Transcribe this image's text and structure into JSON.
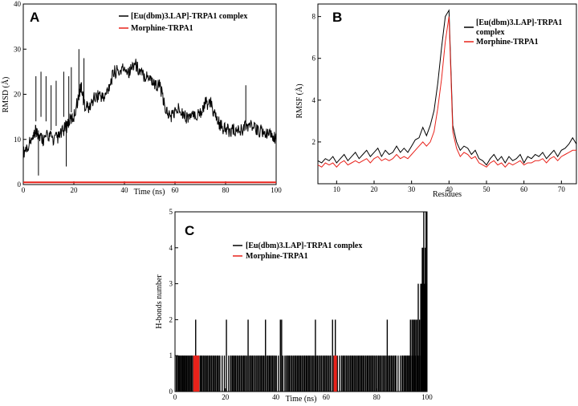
{
  "colors": {
    "complex": "#000000",
    "morphine": "#e8221b"
  },
  "chart_data": [
    {
      "panel": "A",
      "type": "line",
      "xlabel": "Time (ns)",
      "ylabel": "RMSD (Å)",
      "xlim": [
        0,
        100
      ],
      "ylim": [
        0,
        40
      ],
      "xticks": [
        "0",
        "20",
        "40",
        "60",
        "80",
        "100"
      ],
      "yticks": [
        "0",
        "10",
        "20",
        "30",
        "40"
      ],
      "legend": [
        "[Eu(dbm)3.LAP]-TRPA1 complex",
        "Morphine-TRPA1"
      ],
      "series": [
        {
          "name": "[Eu(dbm)3.LAP]-TRPA1 complex",
          "x": [
            0,
            2,
            4,
            5,
            6,
            8,
            10,
            12,
            14,
            16,
            18,
            20,
            22,
            23,
            24,
            26,
            28,
            30,
            32,
            34,
            36,
            38,
            40,
            42,
            44,
            46,
            48,
            50,
            52,
            54,
            56,
            58,
            60,
            62,
            64,
            66,
            68,
            70,
            72,
            74,
            76,
            78,
            80,
            82,
            84,
            86,
            88,
            90,
            92,
            94,
            96,
            98,
            100
          ],
          "y": [
            7,
            9,
            10,
            12,
            11,
            10,
            11,
            10,
            10.5,
            12,
            14,
            15,
            20,
            22,
            18,
            17,
            19,
            20,
            19,
            22,
            25,
            25,
            26,
            25,
            27,
            25,
            24,
            24,
            22,
            22,
            17,
            15,
            16,
            17,
            15,
            15,
            15,
            16,
            18,
            18,
            15,
            13,
            12,
            12,
            12,
            12,
            13,
            13,
            12,
            12,
            11,
            11,
            10
          ]
        },
        {
          "name": "Morphine-TRPA1",
          "x": [
            0,
            20,
            40,
            60,
            80,
            100
          ],
          "y": [
            0.5,
            0.5,
            0.5,
            0.5,
            0.5,
            0.5
          ]
        }
      ]
    },
    {
      "panel": "B",
      "type": "line",
      "xlabel": "Residues",
      "ylabel": "RMSF (Å)",
      "xlim": [
        5,
        74
      ],
      "ylim": [
        0,
        8.6
      ],
      "xticks": [
        "10",
        "20",
        "30",
        "40",
        "50",
        "60",
        "70"
      ],
      "yticks": [
        "2",
        "4",
        "6",
        "8"
      ],
      "legend": [
        "[Eu(dbm)3.LAP]-TRPA1 complex",
        "Morphine-TRPA1"
      ],
      "series": [
        {
          "name": "[Eu(dbm)3.LAP]-TRPA1 complex",
          "x": [
            5,
            6,
            7,
            8,
            9,
            10,
            11,
            12,
            13,
            14,
            15,
            16,
            17,
            18,
            19,
            20,
            21,
            22,
            23,
            24,
            25,
            26,
            27,
            28,
            29,
            30,
            31,
            32,
            33,
            34,
            35,
            36,
            37,
            38,
            39,
            40,
            41,
            42,
            43,
            44,
            45,
            46,
            47,
            48,
            49,
            50,
            51,
            52,
            53,
            54,
            55,
            56,
            57,
            58,
            59,
            60,
            61,
            62,
            63,
            64,
            65,
            66,
            67,
            68,
            69,
            70,
            71,
            72,
            73,
            74
          ],
          "y": [
            1.1,
            1.0,
            1.2,
            1.1,
            1.3,
            1.0,
            1.2,
            1.4,
            1.1,
            1.3,
            1.5,
            1.2,
            1.4,
            1.6,
            1.3,
            1.5,
            1.7,
            1.3,
            1.6,
            1.4,
            1.5,
            1.8,
            1.5,
            1.7,
            1.5,
            1.8,
            2.1,
            2.2,
            2.7,
            2.3,
            2.8,
            3.5,
            4.8,
            6.5,
            8.0,
            8.3,
            2.8,
            2.0,
            1.6,
            1.8,
            1.7,
            1.4,
            1.6,
            1.2,
            1.1,
            0.9,
            1.2,
            1.4,
            1.1,
            1.3,
            1.0,
            1.3,
            1.1,
            1.2,
            1.4,
            1.0,
            1.3,
            1.2,
            1.4,
            1.3,
            1.5,
            1.2,
            1.4,
            1.6,
            1.3,
            1.6,
            1.7,
            1.9,
            2.2,
            1.9
          ]
        },
        {
          "name": "Morphine-TRPA1",
          "x": [
            5,
            6,
            7,
            8,
            9,
            10,
            11,
            12,
            13,
            14,
            15,
            16,
            17,
            18,
            19,
            20,
            21,
            22,
            23,
            24,
            25,
            26,
            27,
            28,
            29,
            30,
            31,
            32,
            33,
            34,
            35,
            36,
            37,
            38,
            39,
            40,
            41,
            42,
            43,
            44,
            45,
            46,
            47,
            48,
            49,
            50,
            51,
            52,
            53,
            54,
            55,
            56,
            57,
            58,
            59,
            60,
            61,
            62,
            63,
            64,
            65,
            66,
            67,
            68,
            69,
            70,
            71,
            72,
            73,
            74
          ],
          "y": [
            0.9,
            0.8,
            1.0,
            0.9,
            1.0,
            0.8,
            1.0,
            1.1,
            0.9,
            1.0,
            1.1,
            1.0,
            1.1,
            1.2,
            1.0,
            1.2,
            1.3,
            1.1,
            1.2,
            1.1,
            1.2,
            1.4,
            1.2,
            1.3,
            1.2,
            1.4,
            1.6,
            1.8,
            2.0,
            1.8,
            2.0,
            2.5,
            3.6,
            5.0,
            6.8,
            8.0,
            2.5,
            1.7,
            1.3,
            1.5,
            1.4,
            1.2,
            1.3,
            1.0,
            0.9,
            0.8,
            1.0,
            1.1,
            0.9,
            1.0,
            0.8,
            1.0,
            0.9,
            1.0,
            1.1,
            0.9,
            1.0,
            1.0,
            1.1,
            1.1,
            1.2,
            1.0,
            1.2,
            1.3,
            1.1,
            1.3,
            1.4,
            1.5,
            1.6,
            1.6
          ]
        }
      ]
    },
    {
      "panel": "C",
      "type": "bar",
      "xlabel": "Time (ns)",
      "ylabel": "H-bonds number",
      "xlim": [
        0,
        100
      ],
      "ylim": [
        0,
        5
      ],
      "xticks": [
        "0",
        "20",
        "40",
        "60",
        "80",
        "100"
      ],
      "yticks": [
        "0",
        "1",
        "2",
        "3",
        "4",
        "5"
      ],
      "legend": [
        "[Eu(dbm)3.LAP]-TRPA1 complex",
        "Morphine-TRPA1"
      ],
      "series": [
        {
          "name": "[Eu(dbm)3.LAP]-TRPA1 complex",
          "x": [
            0.5,
            1.0,
            1.5,
            2.0,
            2.6,
            3.1,
            3.7,
            4.2,
            4.8,
            5.3,
            5.9,
            6.5,
            7.0,
            8.2,
            8.7,
            9.4,
            10.0,
            10.6,
            11.3,
            12.0,
            12.8,
            13.6,
            14.4,
            15.2,
            16.0,
            16.9,
            17.8,
            18.7,
            19.6,
            20.4,
            21.3,
            22.1,
            23.0,
            23.8,
            24.7,
            25.6,
            26.4,
            27.3,
            28.1,
            29.0,
            29.9,
            30.7,
            31.6,
            32.5,
            33.3,
            34.2,
            35.0,
            35.9,
            36.8,
            37.6,
            38.5,
            39.3,
            40.2,
            41.0,
            41.8,
            42.3,
            42.8,
            43.6,
            44.5,
            45.3,
            46.2,
            47.1,
            47.9,
            48.8,
            49.6,
            50.5,
            51.4,
            52.2,
            53.1,
            53.9,
            54.8,
            55.7,
            56.5,
            57.4,
            58.2,
            59.1,
            60.0,
            60.8,
            61.7,
            62.5,
            63.0,
            63.6,
            64.4,
            65.3,
            66.1,
            67.0,
            67.9,
            68.7,
            69.6,
            70.4,
            71.3,
            72.2,
            73.0,
            73.9,
            74.7,
            75.6,
            76.5,
            77.3,
            78.2,
            79.0,
            79.9,
            80.8,
            81.6,
            82.5,
            83.3,
            84.2,
            85.1,
            85.9,
            86.8,
            87.6,
            88.5,
            89.4,
            90.2,
            91.0,
            91.6,
            92.2,
            92.8,
            93.4,
            94.0,
            94.5,
            95.0,
            95.5,
            96.0,
            96.5,
            97.0,
            97.5,
            97.8,
            98.1,
            98.4,
            98.7,
            99.0,
            99.3,
            99.6,
            99.8
          ],
          "y": [
            1,
            1,
            1,
            1,
            1,
            1,
            1,
            1,
            1,
            1,
            1,
            1,
            1,
            2,
            1,
            1,
            1,
            1,
            1,
            1,
            1,
            1,
            1,
            1,
            1,
            1,
            1,
            1,
            1,
            2,
            1,
            1,
            1,
            1,
            1,
            1,
            1,
            1,
            1,
            2,
            1,
            1,
            1,
            1,
            1,
            1,
            1,
            2,
            1,
            1,
            1,
            1,
            1,
            1,
            2,
            2,
            1,
            1,
            1,
            1,
            1,
            1,
            1,
            1,
            1,
            1,
            1,
            1,
            1,
            1,
            1,
            2,
            1,
            1,
            1,
            1,
            1,
            1,
            1,
            2,
            1,
            2,
            1,
            1,
            1,
            1,
            1,
            1,
            1,
            1,
            1,
            1,
            1,
            1,
            1,
            1,
            1,
            1,
            1,
            1,
            1,
            1,
            1,
            1,
            1,
            2,
            1,
            1,
            1,
            1,
            1,
            1,
            1,
            1,
            1,
            1,
            1,
            2,
            2,
            2,
            2,
            2,
            2,
            3,
            2,
            3,
            3,
            4,
            4,
            5,
            3,
            4,
            5,
            3
          ]
        },
        {
          "name": "Morphine-TRPA1",
          "x": [
            7.5,
            7.8,
            8.1,
            8.4,
            8.8,
            9.1,
            9.4,
            63.2,
            63.6,
            64.0
          ],
          "y": [
            1,
            1,
            1,
            1,
            1,
            1,
            1,
            1,
            1,
            1
          ]
        }
      ]
    }
  ]
}
